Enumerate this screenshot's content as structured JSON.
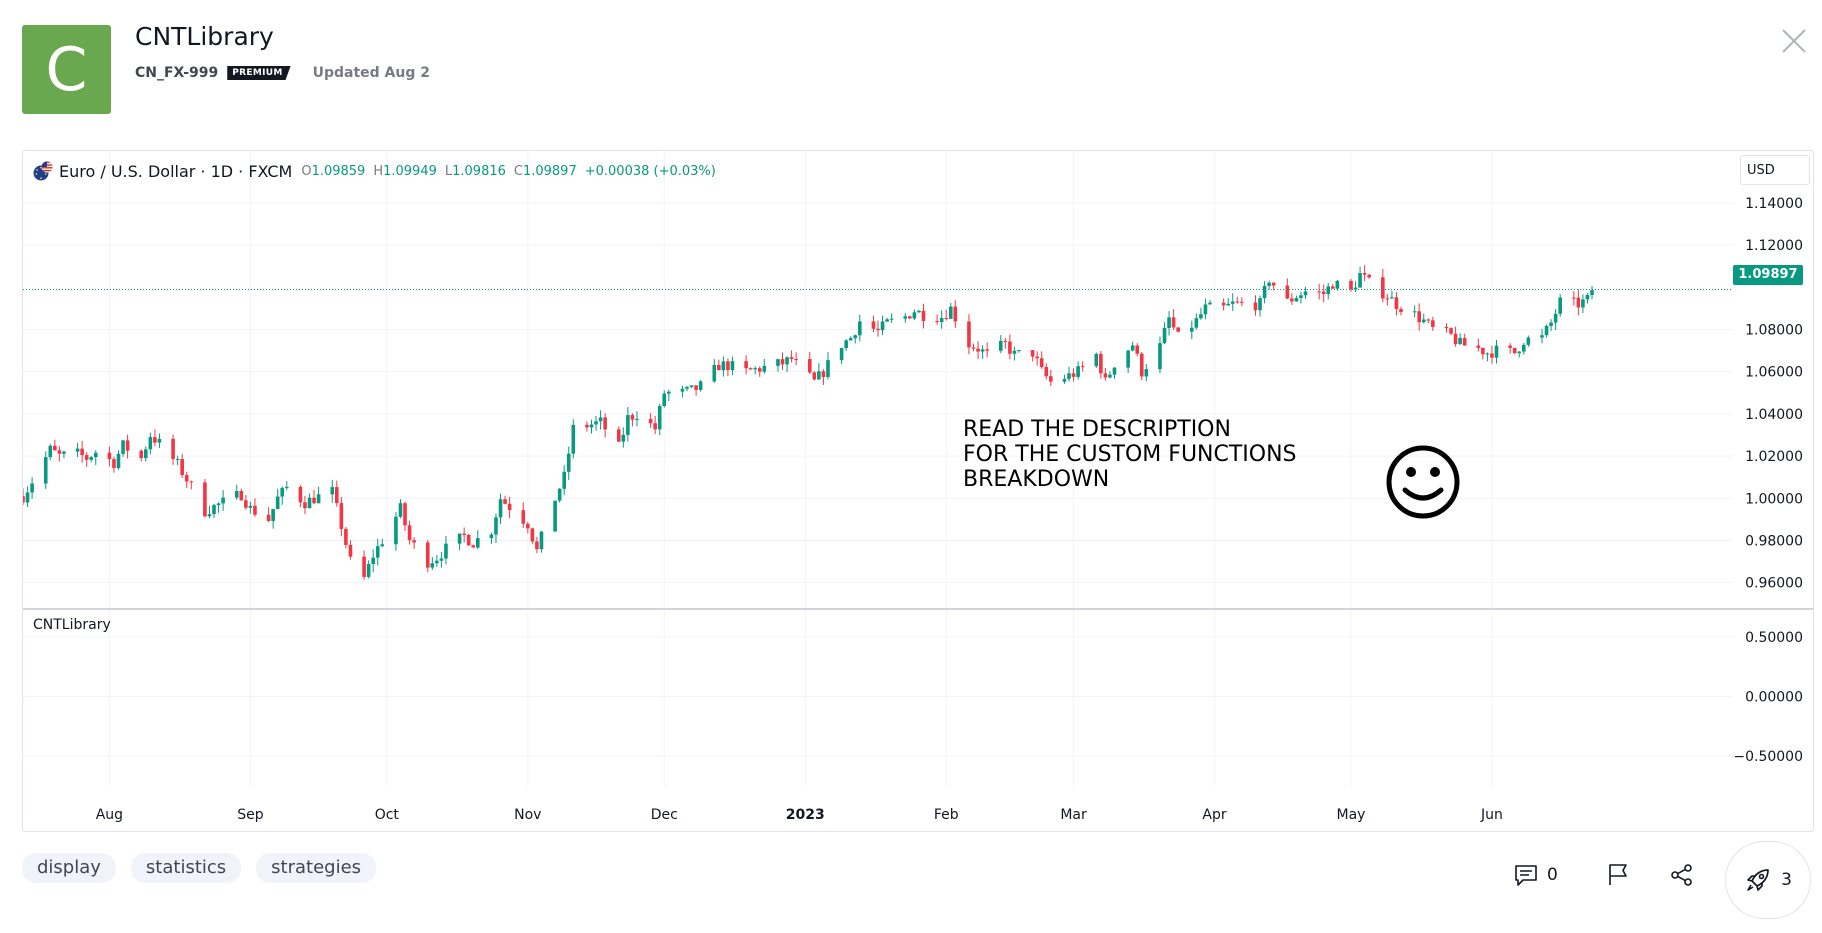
{
  "header": {
    "avatar_letter": "C",
    "title": "CNTLibrary",
    "author": "CN_FX-999",
    "premium_badge": "PREMIUM",
    "updated": "Updated Aug 2",
    "avatar_color": "#6aa84f"
  },
  "chart": {
    "symbol": "Euro / U.S. Dollar · 1D · FXCM",
    "ohlc": {
      "o_label": "O",
      "o": "1.09859",
      "h_label": "H",
      "h": "1.09949",
      "l_label": "L",
      "l": "1.09816",
      "c_label": "C",
      "c": "1.09897"
    },
    "change": "+0.00038 (+0.03%)",
    "currency": "USD",
    "last_price": "1.09897",
    "annotation_lines": [
      "READ THE DESCRIPTION",
      "FOR THE CUSTOM FUNCTIONS",
      "BREAKDOWN"
    ],
    "indicator_pane_title": "CNTLibrary",
    "up_color": "#089981",
    "down_color": "#f23645"
  },
  "chart_data": {
    "type": "candlestick",
    "series_name": "EURUSD",
    "main_axis": {
      "ylim": [
        0.948,
        1.148
      ],
      "ticks": [
        {
          "v": 1.14,
          "label": "1.14000"
        },
        {
          "v": 1.12,
          "label": "1.12000"
        },
        {
          "v": 1.08,
          "label": "1.08000"
        },
        {
          "v": 1.06,
          "label": "1.06000"
        },
        {
          "v": 1.04,
          "label": "1.04000"
        },
        {
          "v": 1.02,
          "label": "1.02000"
        },
        {
          "v": 1.0,
          "label": "1.00000"
        },
        {
          "v": 0.98,
          "label": "0.98000"
        },
        {
          "v": 0.96,
          "label": "0.96000"
        }
      ]
    },
    "indicator_axis": {
      "ylim": [
        -0.75,
        0.75
      ],
      "ticks": [
        {
          "v": 0.5,
          "label": "0.50000"
        },
        {
          "v": 0.0,
          "label": "0.00000"
        },
        {
          "v": -0.5,
          "label": "−0.50000"
        }
      ]
    },
    "x_range": [
      "2022-07-13",
      "2023-07-24"
    ],
    "x_ticks": [
      {
        "date": "2022-08-01",
        "label": "Aug",
        "bold": false
      },
      {
        "date": "2022-09-01",
        "label": "Sep",
        "bold": false
      },
      {
        "date": "2022-10-01",
        "label": "Oct",
        "bold": false
      },
      {
        "date": "2022-11-01",
        "label": "Nov",
        "bold": false
      },
      {
        "date": "2022-12-01",
        "label": "Dec",
        "bold": false
      },
      {
        "date": "2023-01-01",
        "label": "2023",
        "bold": true
      },
      {
        "date": "2023-02-01",
        "label": "Feb",
        "bold": false
      },
      {
        "date": "2023-03-01",
        "label": "Mar",
        "bold": false
      },
      {
        "date": "2023-04-01",
        "label": "Apr",
        "bold": false
      },
      {
        "date": "2023-05-01",
        "label": "May",
        "bold": false
      },
      {
        "date": "2023-06-01",
        "label": "Jun",
        "bold": false
      }
    ],
    "closes": [
      [
        "2022-07-13",
        1.001
      ],
      [
        "2022-07-15",
        1.008
      ],
      [
        "2022-07-19",
        1.023
      ],
      [
        "2022-07-21",
        1.02
      ],
      [
        "2022-07-25",
        1.021
      ],
      [
        "2022-07-27",
        1.019
      ],
      [
        "2022-07-29",
        1.022
      ],
      [
        "2022-08-02",
        1.017
      ],
      [
        "2022-08-04",
        1.025
      ],
      [
        "2022-08-08",
        1.019
      ],
      [
        "2022-08-10",
        1.03
      ],
      [
        "2022-08-12",
        1.026
      ],
      [
        "2022-08-16",
        1.016
      ],
      [
        "2022-08-18",
        1.009
      ],
      [
        "2022-08-22",
        0.994
      ],
      [
        "2022-08-24",
        0.996
      ],
      [
        "2022-08-26",
        0.998
      ],
      [
        "2022-08-30",
        1.002
      ],
      [
        "2022-09-01",
        0.995
      ],
      [
        "2022-09-05",
        0.99
      ],
      [
        "2022-09-07",
        1.0
      ],
      [
        "2022-09-09",
        1.005
      ],
      [
        "2022-09-13",
        0.998
      ],
      [
        "2022-09-15",
        1.0
      ],
      [
        "2022-09-19",
        1.003
      ],
      [
        "2022-09-21",
        0.987
      ],
      [
        "2022-09-23",
        0.97
      ],
      [
        "2022-09-26",
        0.962
      ],
      [
        "2022-09-28",
        0.973
      ],
      [
        "2022-09-30",
        0.98
      ],
      [
        "2022-10-04",
        0.995
      ],
      [
        "2022-10-06",
        0.98
      ],
      [
        "2022-10-10",
        0.97
      ],
      [
        "2022-10-12",
        0.972
      ],
      [
        "2022-10-14",
        0.976
      ],
      [
        "2022-10-18",
        0.982
      ],
      [
        "2022-10-20",
        0.979
      ],
      [
        "2022-10-24",
        0.985
      ],
      [
        "2022-10-26",
        1.0
      ],
      [
        "2022-10-28",
        0.996
      ],
      [
        "2022-11-01",
        0.988
      ],
      [
        "2022-11-03",
        0.975
      ],
      [
        "2022-11-07",
        1.0
      ],
      [
        "2022-11-09",
        1.01
      ],
      [
        "2022-11-11",
        1.033
      ],
      [
        "2022-11-15",
        1.035
      ],
      [
        "2022-11-17",
        1.036
      ],
      [
        "2022-11-21",
        1.024
      ],
      [
        "2022-11-23",
        1.038
      ],
      [
        "2022-11-25",
        1.04
      ],
      [
        "2022-11-29",
        1.033
      ],
      [
        "2022-12-01",
        1.05
      ],
      [
        "2022-12-05",
        1.05
      ],
      [
        "2022-12-07",
        1.051
      ],
      [
        "2022-12-09",
        1.053
      ],
      [
        "2022-12-13",
        1.063
      ],
      [
        "2022-12-15",
        1.063
      ],
      [
        "2022-12-19",
        1.06
      ],
      [
        "2022-12-21",
        1.061
      ],
      [
        "2022-12-23",
        1.062
      ],
      [
        "2022-12-27",
        1.064
      ],
      [
        "2022-12-29",
        1.066
      ],
      [
        "2023-01-03",
        1.055
      ],
      [
        "2023-01-05",
        1.06
      ],
      [
        "2023-01-09",
        1.073
      ],
      [
        "2023-01-11",
        1.076
      ],
      [
        "2023-01-13",
        1.084
      ],
      [
        "2023-01-17",
        1.079
      ],
      [
        "2023-01-19",
        1.083
      ],
      [
        "2023-01-23",
        1.086
      ],
      [
        "2023-01-25",
        1.089
      ],
      [
        "2023-01-27",
        1.087
      ],
      [
        "2023-01-31",
        1.086
      ],
      [
        "2023-02-02",
        1.09
      ],
      [
        "2023-02-06",
        1.073
      ],
      [
        "2023-02-08",
        1.071
      ],
      [
        "2023-02-10",
        1.068
      ],
      [
        "2023-02-14",
        1.073
      ],
      [
        "2023-02-16",
        1.068
      ],
      [
        "2023-02-20",
        1.069
      ],
      [
        "2023-02-22",
        1.06
      ],
      [
        "2023-02-24",
        1.055
      ],
      [
        "2023-02-28",
        1.058
      ],
      [
        "2023-03-02",
        1.06
      ],
      [
        "2023-03-06",
        1.068
      ],
      [
        "2023-03-08",
        1.055
      ],
      [
        "2023-03-10",
        1.064
      ],
      [
        "2023-03-14",
        1.073
      ],
      [
        "2023-03-16",
        1.06
      ],
      [
        "2023-03-20",
        1.072
      ],
      [
        "2023-03-22",
        1.085
      ],
      [
        "2023-03-24",
        1.076
      ],
      [
        "2023-03-28",
        1.084
      ],
      [
        "2023-03-30",
        1.09
      ],
      [
        "2023-04-03",
        1.09
      ],
      [
        "2023-04-05",
        1.092
      ],
      [
        "2023-04-07",
        1.092
      ],
      [
        "2023-04-11",
        1.092
      ],
      [
        "2023-04-13",
        1.104
      ],
      [
        "2023-04-17",
        1.093
      ],
      [
        "2023-04-19",
        1.096
      ],
      [
        "2023-04-21",
        1.098
      ],
      [
        "2023-04-25",
        1.097
      ],
      [
        "2023-04-27",
        1.102
      ],
      [
        "2023-05-01",
        1.098
      ],
      [
        "2023-05-03",
        1.106
      ],
      [
        "2023-05-05",
        1.102
      ],
      [
        "2023-05-09",
        1.096
      ],
      [
        "2023-05-11",
        1.092
      ],
      [
        "2023-05-15",
        1.087
      ],
      [
        "2023-05-17",
        1.084
      ],
      [
        "2023-05-19",
        1.08
      ],
      [
        "2023-05-23",
        1.077
      ],
      [
        "2023-05-25",
        1.073
      ],
      [
        "2023-05-29",
        1.071
      ],
      [
        "2023-05-31",
        1.069
      ],
      [
        "2023-06-02",
        1.07
      ],
      [
        "2023-06-06",
        1.069
      ],
      [
        "2023-06-08",
        1.075
      ],
      [
        "2023-06-12",
        1.076
      ],
      [
        "2023-06-14",
        1.083
      ],
      [
        "2023-06-16",
        1.093
      ],
      [
        "2023-06-20",
        1.092
      ],
      [
        "2023-06-22",
        1.094
      ],
      [
        "2023-06-23",
        1.0986
      ]
    ]
  },
  "tags": [
    "display",
    "statistics",
    "strategies"
  ],
  "actions": {
    "comment_count": "0",
    "boost_count": "3"
  }
}
